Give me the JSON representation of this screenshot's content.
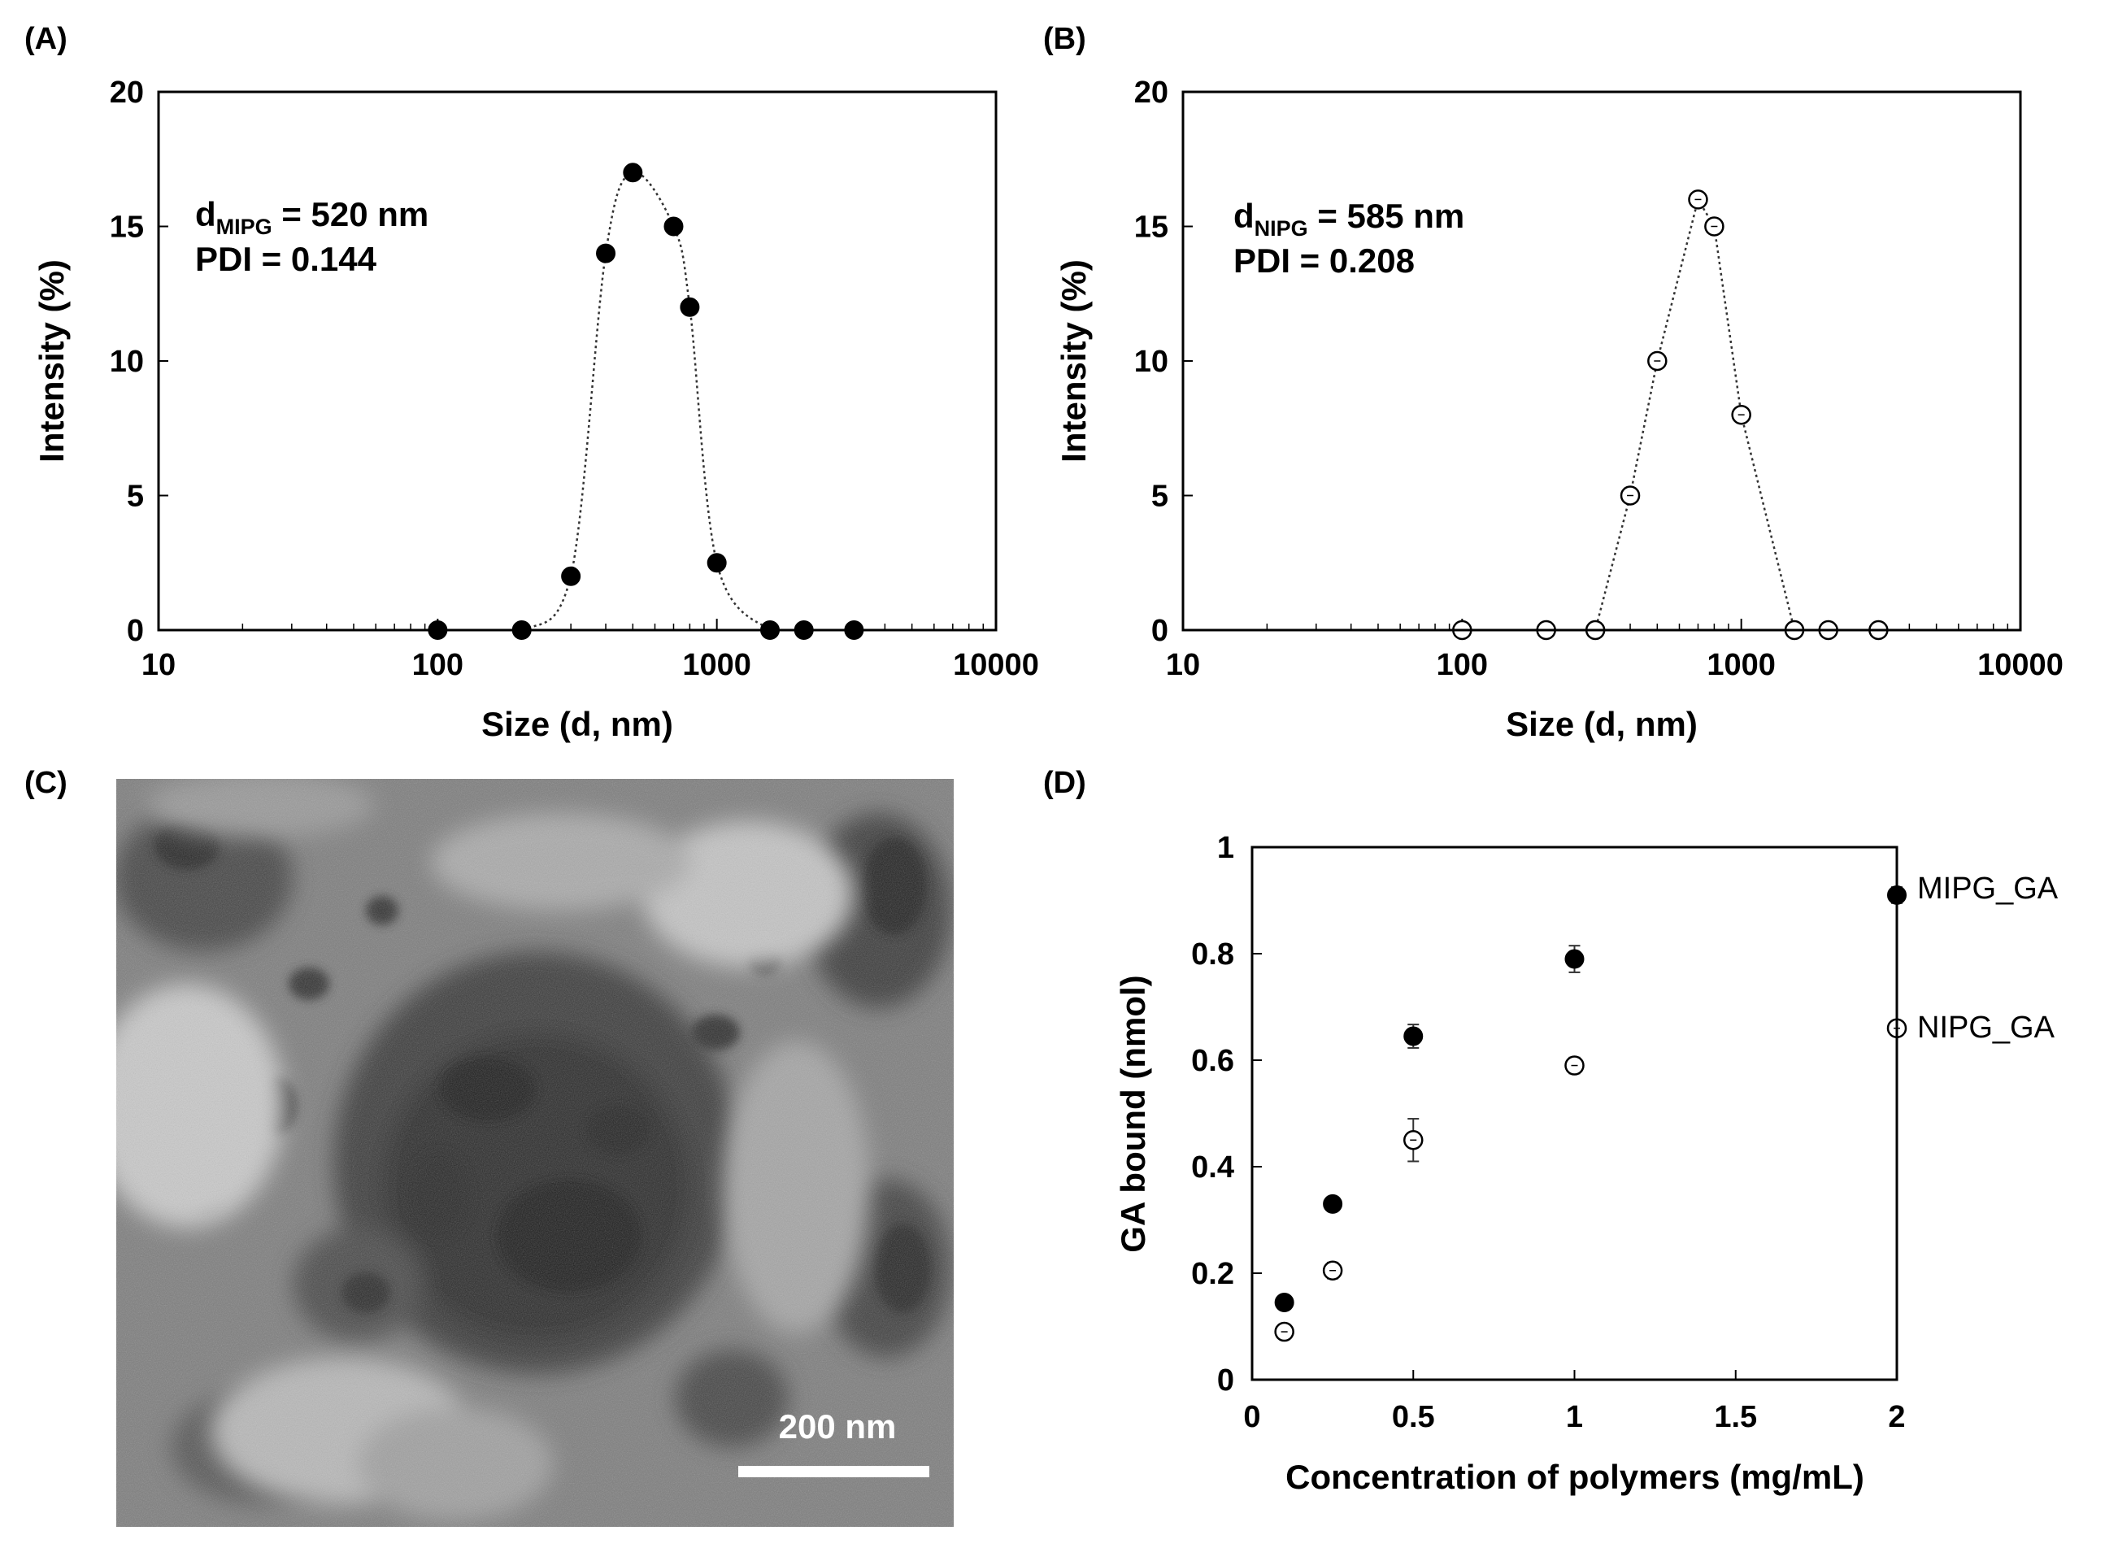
{
  "colors": {
    "filled_marker": "#000000",
    "open_marker": "#ffffff",
    "axis": "#000000",
    "curve": "#333333"
  },
  "panels": [
    {
      "label": "(A)",
      "annotation": {
        "line1_prefix": "d",
        "line1_sub": "MIPG",
        "line1_rest": " = 520 nm",
        "line2": "PDI = 0.144"
      }
    },
    {
      "label": "(B)",
      "annotation": {
        "line1_prefix": "d",
        "line1_sub": "NIPG",
        "line1_rest": " = 585 nm",
        "line2": "PDI = 0.208"
      }
    },
    {
      "label": "(C)",
      "scale_bar_label": "200 nm"
    },
    {
      "label": "(D)"
    }
  ],
  "chart_data": [
    {
      "type": "line",
      "panel": "(A)",
      "xscale": "log",
      "xlim": [
        10,
        10000
      ],
      "ylim": [
        0,
        20
      ],
      "xticks": [
        "10",
        "100",
        "1000",
        "10000"
      ],
      "yticks": [
        "0",
        "5",
        "10",
        "15",
        "20"
      ],
      "xlabel": "Size (d, nm)",
      "ylabel": "Intensity (%)",
      "marker": "filled",
      "series": [
        {
          "x": [
            100,
            200,
            300,
            400,
            500,
            700,
            800,
            1000,
            1550,
            2050,
            3100
          ],
          "y": [
            0,
            0,
            2,
            14,
            17,
            15,
            12,
            2.5,
            0,
            0,
            0
          ]
        }
      ]
    },
    {
      "type": "line",
      "panel": "(B)",
      "xscale": "log",
      "xlim": [
        10,
        10000
      ],
      "ylim": [
        0,
        20
      ],
      "xticks": [
        "10",
        "100",
        "1000",
        "10000"
      ],
      "yticks": [
        "0",
        "5",
        "10",
        "15",
        "20"
      ],
      "xlabel": "Size (d, nm)",
      "ylabel": "Intensity (%)",
      "marker": "open",
      "series": [
        {
          "x": [
            100,
            200,
            300,
            400,
            500,
            700,
            800,
            1000,
            1550,
            2050,
            3100
          ],
          "y": [
            0,
            0,
            0,
            5,
            10,
            16,
            15,
            8,
            0,
            0,
            0
          ]
        }
      ]
    },
    {
      "type": "scatter",
      "panel": "(D)",
      "xlim": [
        0,
        2
      ],
      "ylim": [
        0,
        1
      ],
      "xticks": [
        "0",
        "0.5",
        "1",
        "1.5",
        "2"
      ],
      "yticks": [
        "0",
        "0.2",
        "0.4",
        "0.6",
        "0.8",
        "1"
      ],
      "xlabel": "Concentration of polymers (mg/mL)",
      "ylabel": "GA bound (nmol)",
      "series": [
        {
          "name": "MIPG_GA",
          "marker": "filled",
          "x": [
            0.1,
            0.25,
            0.5,
            1,
            2
          ],
          "y": [
            0.145,
            0.33,
            0.645,
            0.79,
            0.91
          ],
          "err": [
            0.008,
            0.01,
            0.022,
            0.025,
            0.015
          ]
        },
        {
          "name": "NIPG_GA",
          "marker": "open",
          "x": [
            0.1,
            0.25,
            0.5,
            1,
            2
          ],
          "y": [
            0.09,
            0.205,
            0.45,
            0.59,
            0.66
          ],
          "err": [
            0.01,
            0.015,
            0.04,
            0.015,
            0.01
          ]
        }
      ]
    }
  ]
}
